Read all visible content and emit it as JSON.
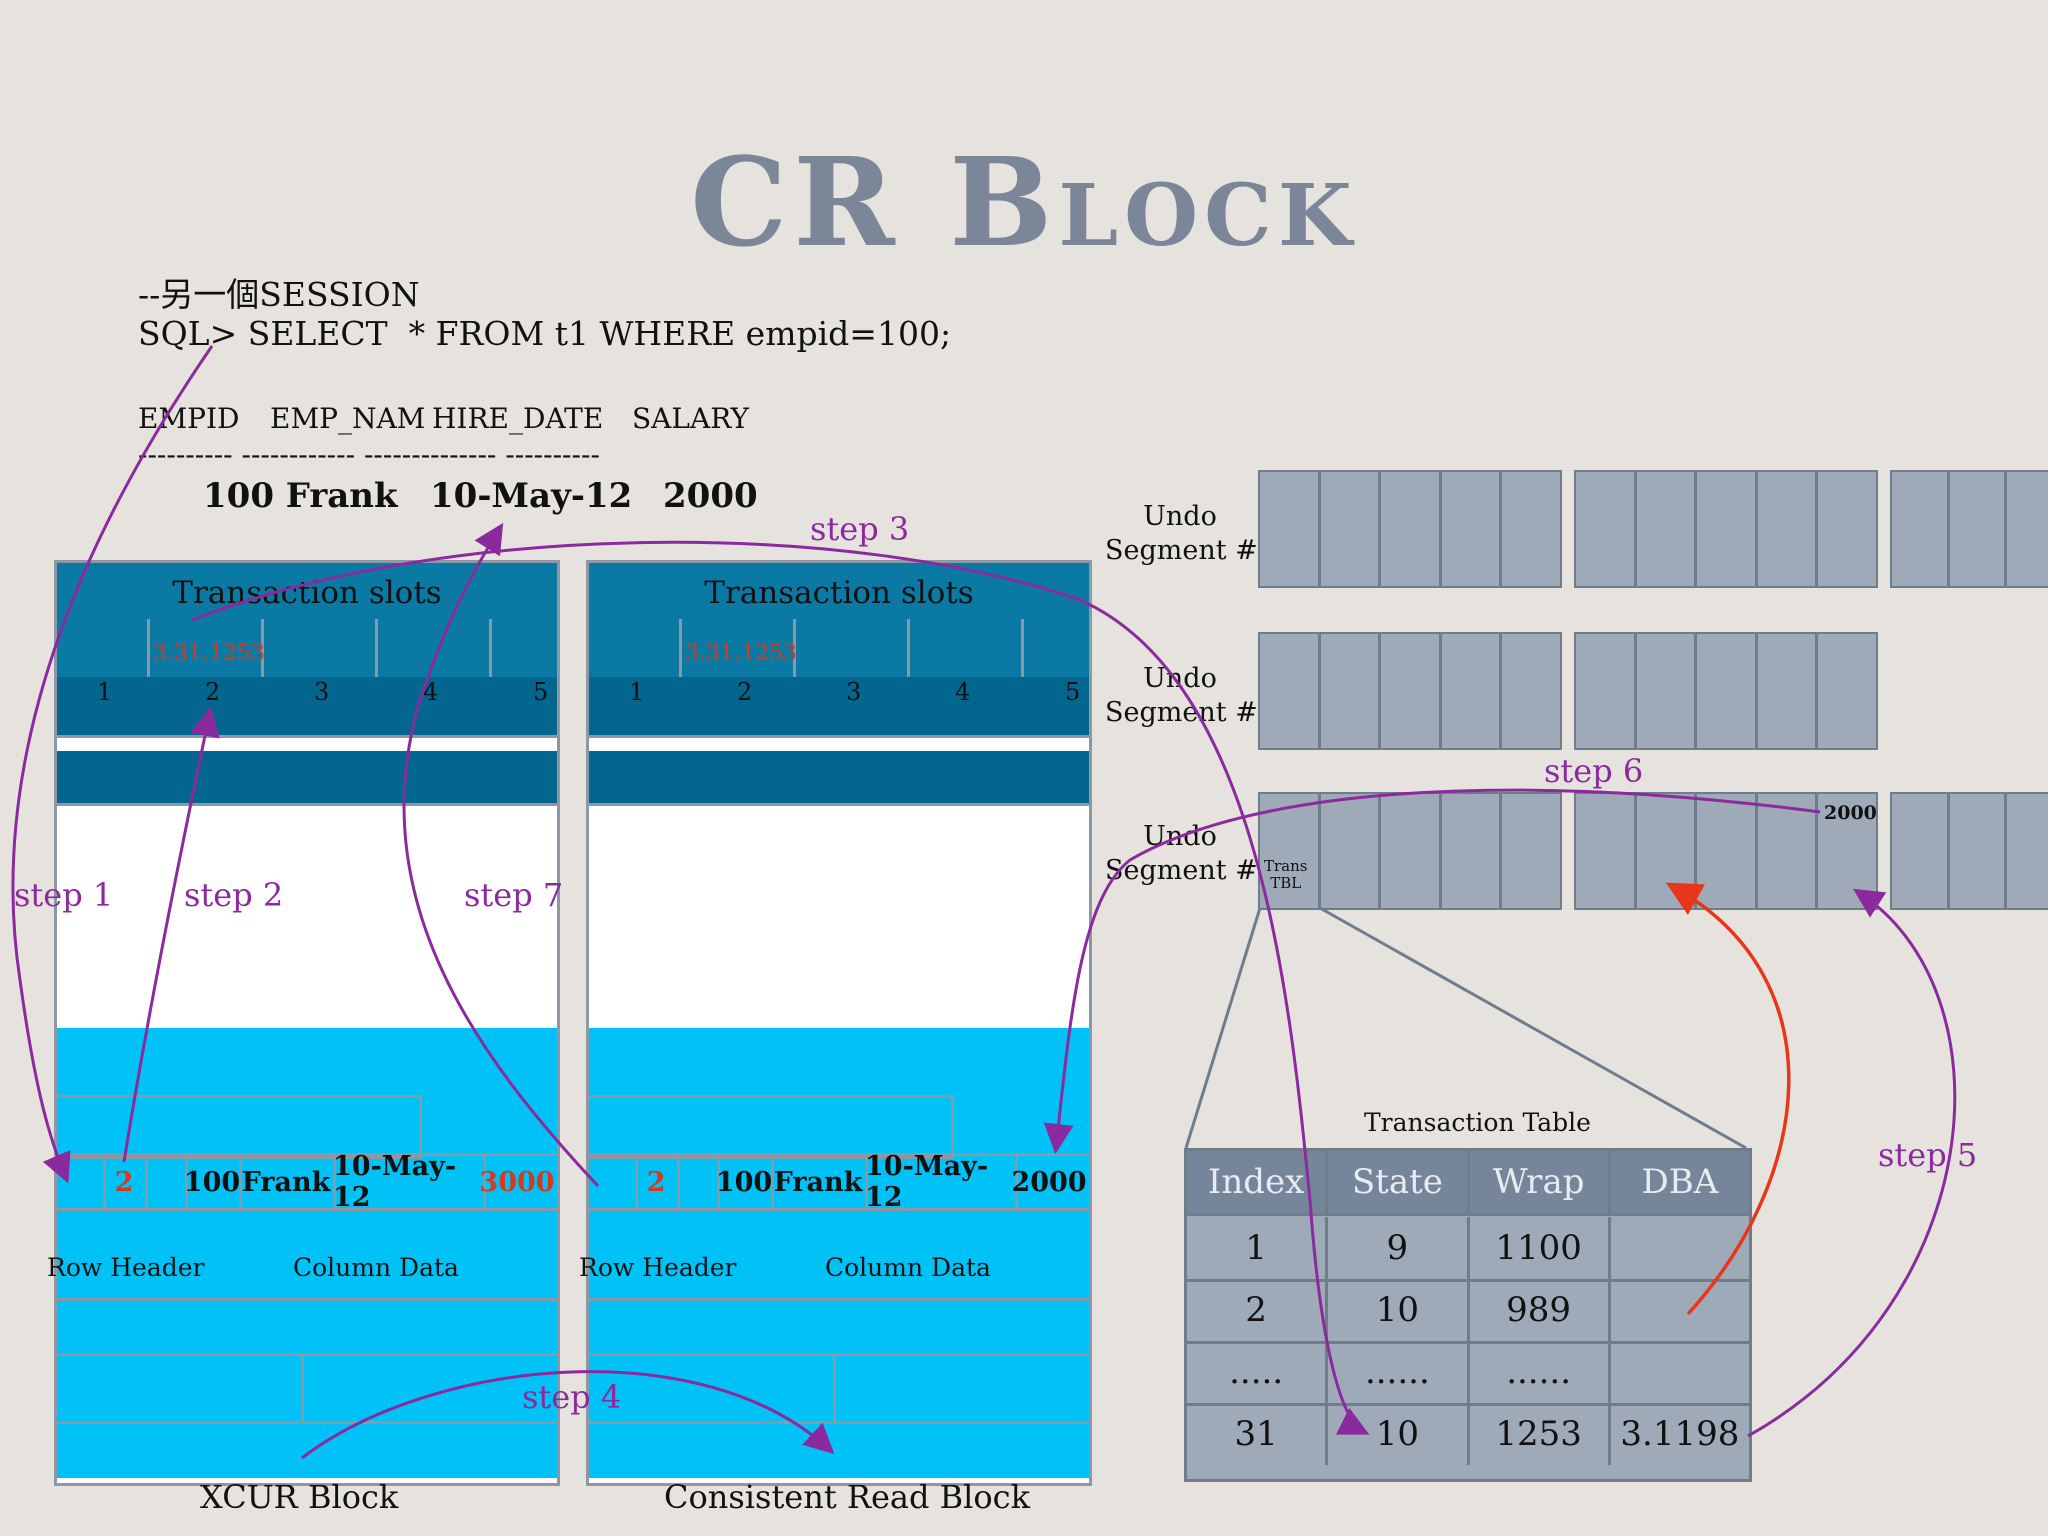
{
  "title": "CR Block",
  "sql": {
    "comment": "--另一個SESSION",
    "query": "SQL> SELECT  * FROM t1 WHERE empid=100;",
    "columns": [
      "EMPID",
      "EMP_NAM",
      "HIRE_DATE",
      "SALARY"
    ],
    "separator": "---------- ------------ -------------- ----------",
    "result": [
      "100 Frank",
      "10-May-12",
      "2000"
    ]
  },
  "blocks": [
    {
      "caption": "XCUR Block",
      "slots_title": "Transaction slots",
      "xid": "3.31.1253",
      "slot_numbers": [
        "1",
        "2",
        "3",
        "4",
        "5"
      ],
      "row": {
        "slot": "2",
        "empid": "100",
        "name": "Frank",
        "date": "10-May-12",
        "salary": "3000"
      },
      "row_header_label": "Row Header",
      "column_data_label": "Column Data"
    },
    {
      "caption": "Consistent Read Block",
      "slots_title": "Transaction slots",
      "xid": "3.31.1253",
      "slot_numbers": [
        "1",
        "2",
        "3",
        "4",
        "5"
      ],
      "row": {
        "slot": "2",
        "empid": "100",
        "name": "Frank",
        "date": "10-May-12",
        "salary": "2000"
      },
      "row_header_label": "Row Header",
      "column_data_label": "Column Data"
    }
  ],
  "undo": {
    "segments": [
      "Undo\nSegment #1",
      "Undo\nSegment #2",
      "Undo\nSegment #3"
    ],
    "trans_tbl": "Trans\nTBL",
    "undo_value": "2000"
  },
  "transaction_table": {
    "title": "Transaction Table",
    "headers": [
      "Index",
      "State",
      "Wrap",
      "DBA"
    ],
    "rows": [
      [
        "1",
        "9",
        "1100",
        ""
      ],
      [
        "2",
        "10",
        "989",
        ""
      ],
      [
        ".....",
        "......",
        "......",
        ""
      ],
      [
        "31",
        "10",
        "1253",
        "3.1198"
      ]
    ]
  },
  "steps": [
    "step 1",
    "step 2",
    "step 3",
    "step 4",
    "step 5",
    "step 6",
    "step 7"
  ],
  "colors": {
    "step": "#8b2a9e",
    "red_arrow": "#e8361a",
    "old_value": "#d33a1f"
  }
}
